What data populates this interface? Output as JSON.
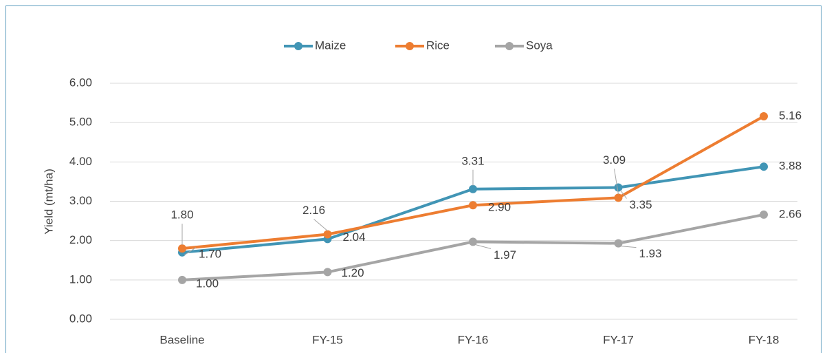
{
  "chart_data": {
    "type": "line",
    "y_label": "Yield (mt/ha)",
    "categories": [
      "Baseline",
      "FY-15",
      "FY-16",
      "FY-17",
      "FY-18"
    ],
    "series": [
      {
        "name": "Maize",
        "color": "#4195b5",
        "values": [
          1.7,
          2.04,
          3.31,
          3.35,
          3.88
        ],
        "value_labels": [
          "1.70",
          "2.04",
          "3.31",
          "3.35",
          "3.88"
        ]
      },
      {
        "name": "Rice",
        "color": "#ed7d31",
        "values": [
          1.8,
          2.16,
          2.9,
          3.09,
          5.16
        ],
        "value_labels": [
          "1.80",
          "2.16",
          "2.90",
          "3.09",
          "5.16"
        ]
      },
      {
        "name": "Soya",
        "color": "#a5a5a5",
        "values": [
          1.0,
          1.2,
          1.97,
          1.93,
          2.66
        ],
        "value_labels": [
          "1.00",
          "1.20",
          "1.97",
          "1.93",
          "2.66"
        ]
      }
    ],
    "ylim": [
      0,
      6
    ],
    "yticks": [
      {
        "value": 0,
        "label": "0.00"
      },
      {
        "value": 1,
        "label": "1.00"
      },
      {
        "value": 2,
        "label": "2.00"
      },
      {
        "value": 3,
        "label": "3.00"
      },
      {
        "value": 4,
        "label": "4.00"
      },
      {
        "value": 5,
        "label": "5.00"
      },
      {
        "value": 6,
        "label": "6.00"
      }
    ],
    "grid": true,
    "legend": "top"
  }
}
